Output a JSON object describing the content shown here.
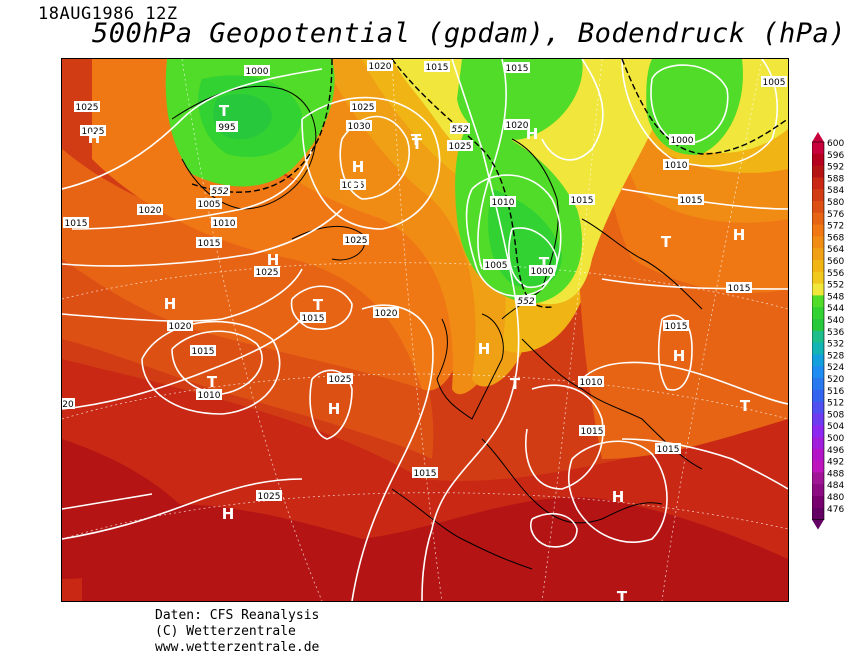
{
  "header": {
    "datestamp": "18AUG1986 12Z",
    "title": "500hPa Geopotential (gpdam), Bodendruck (hPa)"
  },
  "credits": {
    "line1": "Daten: CFS Reanalysis",
    "line2": "(C) Wetterzentrale",
    "line3": "www.wetterzentrale.de"
  },
  "legend": {
    "values": [
      "600",
      "596",
      "592",
      "588",
      "584",
      "580",
      "576",
      "572",
      "568",
      "564",
      "560",
      "556",
      "552",
      "548",
      "544",
      "540",
      "536",
      "532",
      "528",
      "524",
      "520",
      "516",
      "512",
      "508",
      "504",
      "500",
      "496",
      "492",
      "488",
      "484",
      "480",
      "476"
    ],
    "colors": [
      "#c8003c",
      "#b4001e",
      "#b41414",
      "#c82814",
      "#d23c14",
      "#dc5014",
      "#e66414",
      "#f07814",
      "#f08c14",
      "#f0a014",
      "#f0b414",
      "#f0c81e",
      "#f0e63c",
      "#50dc28",
      "#32d232",
      "#28c83c",
      "#1ebe8c",
      "#14b4b4",
      "#14a0dc",
      "#1e8cf0",
      "#2878f0",
      "#3264f0",
      "#5050f0",
      "#6e3cf0",
      "#8c28f0",
      "#a01edc",
      "#b414c8",
      "#be14be",
      "#a01496",
      "#8c0a82",
      "#78006e",
      "#640064"
    ]
  },
  "map": {
    "pressure_labels": [
      {
        "text": "1000"
      },
      {
        "text": "995"
      },
      {
        "text": "1020"
      },
      {
        "text": "1015"
      },
      {
        "text": "1015"
      },
      {
        "text": "1005"
      },
      {
        "text": "1025"
      },
      {
        "text": "1025"
      },
      {
        "text": "1025"
      },
      {
        "text": "1030"
      },
      {
        "text": "1025"
      },
      {
        "text": "1020"
      },
      {
        "text": "1000"
      },
      {
        "text": "1035"
      },
      {
        "text": "1005"
      },
      {
        "text": "1010"
      },
      {
        "text": "1010"
      },
      {
        "text": "1015"
      },
      {
        "text": "1015"
      },
      {
        "text": "1020"
      },
      {
        "text": "1015"
      },
      {
        "text": "1025"
      },
      {
        "text": "1025"
      },
      {
        "text": "1010"
      },
      {
        "text": "1005"
      },
      {
        "text": "1000"
      },
      {
        "text": "1015"
      },
      {
        "text": "1020"
      },
      {
        "text": "1015"
      },
      {
        "text": "1020"
      },
      {
        "text": "1015"
      },
      {
        "text": "1010"
      },
      {
        "text": "1025"
      },
      {
        "text": "1015"
      },
      {
        "text": "1010"
      },
      {
        "text": "1015"
      },
      {
        "text": "1015"
      },
      {
        "text": "1015"
      },
      {
        "text": "1025"
      },
      {
        "text": "1015"
      },
      {
        "text": "20"
      }
    ],
    "geopotential_labels": [
      {
        "text": "552"
      },
      {
        "text": "552"
      },
      {
        "text": "552"
      }
    ],
    "pressure_systems": [
      {
        "type": "H"
      },
      {
        "type": "T"
      },
      {
        "type": "H"
      },
      {
        "type": "T"
      },
      {
        "type": "H"
      },
      {
        "type": "H"
      },
      {
        "type": "T"
      },
      {
        "type": "H"
      },
      {
        "type": "H"
      },
      {
        "type": "T"
      },
      {
        "type": "H"
      },
      {
        "type": "T"
      },
      {
        "type": "T"
      },
      {
        "type": "H"
      },
      {
        "type": "H"
      },
      {
        "type": "H"
      },
      {
        "type": "T"
      },
      {
        "type": "H"
      },
      {
        "type": "T"
      },
      {
        "type": "T"
      },
      {
        "type": "H"
      },
      {
        "type": "T"
      }
    ]
  }
}
